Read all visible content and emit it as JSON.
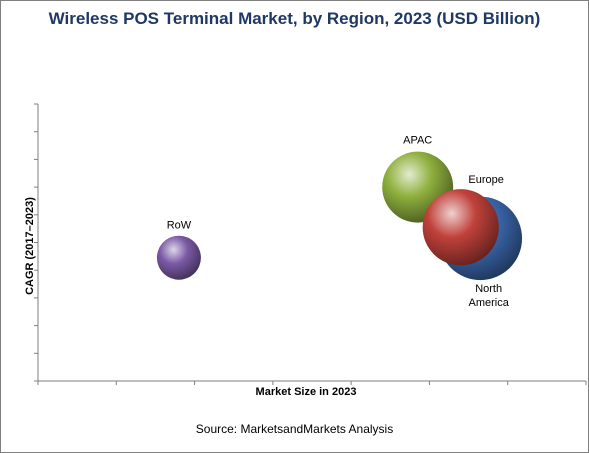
{
  "chart_data": {
    "type": "bubble",
    "title": "Wireless POS Terminal Market, by Region, 2023 (USD Billion)",
    "xlabel": "Market Size in 2023",
    "ylabel": "CAGR (2017–2023)",
    "series": [
      {
        "name": "RoW",
        "x": 1.8,
        "y": 4.45,
        "size": 1.0,
        "color": "#7b5aa6"
      },
      {
        "name": "APAC",
        "x": 4.85,
        "y": 7.0,
        "size": 2.6,
        "color": "#8fb03e"
      },
      {
        "name": "North America",
        "x": 5.65,
        "y": 5.15,
        "size": 3.6,
        "color": "#3a68ad"
      },
      {
        "name": "Europe",
        "x": 5.4,
        "y": 5.55,
        "size": 3.0,
        "color": "#c0413b"
      }
    ],
    "xlim": [
      0,
      7
    ],
    "ylim": [
      0,
      10
    ],
    "grid": false,
    "legend": "none"
  },
  "source": "Source: MarketsandMarkets Analysis"
}
